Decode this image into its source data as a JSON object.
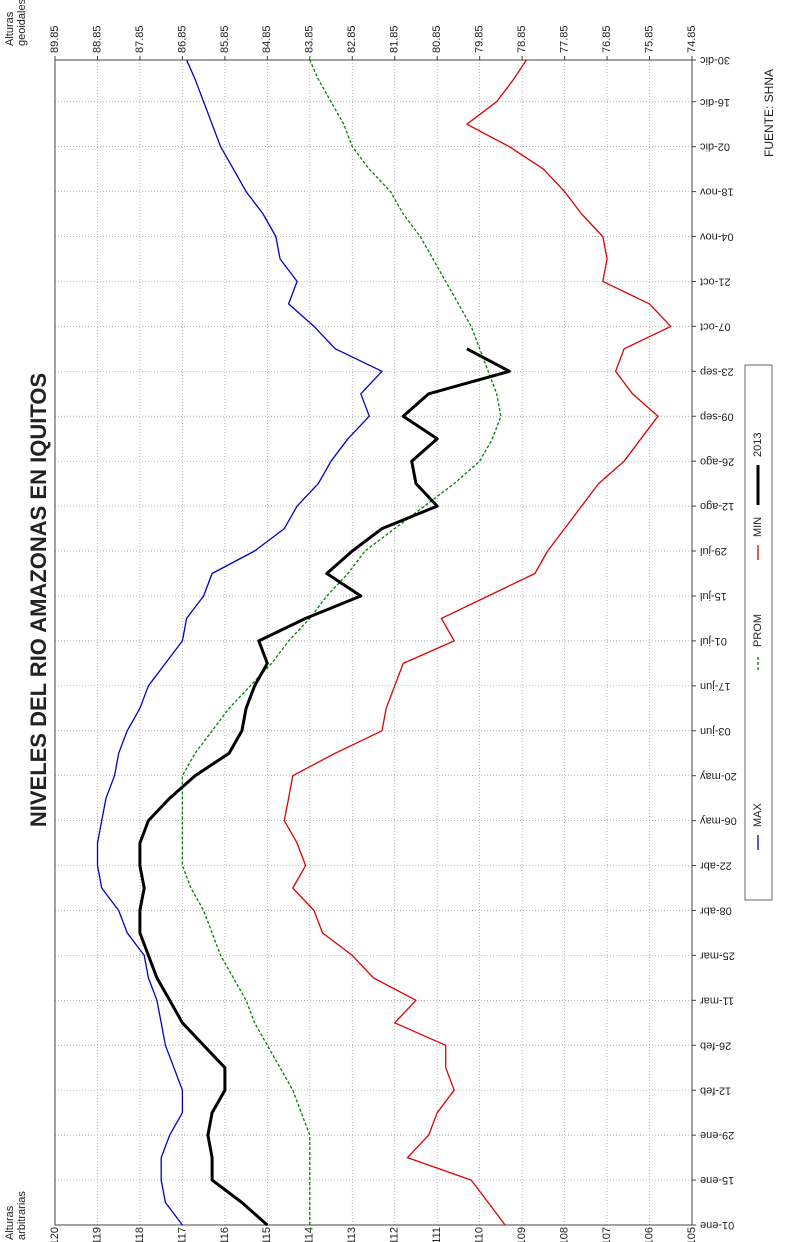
{
  "chart_data": {
    "type": "line",
    "title": "NIVELES DEL RIO AMAZONAS EN IQUITOS",
    "y_label": "Alturas arbitrarias",
    "y2_label": "Alturas geoidales",
    "note": "FUENTE: SHNA",
    "x": [
      0,
      7,
      14,
      21,
      28,
      35,
      42,
      49,
      56,
      63,
      70,
      77,
      84,
      91,
      98,
      105,
      112,
      119,
      126,
      133,
      140,
      147,
      154,
      161,
      168,
      175,
      182,
      189,
      196,
      203,
      210,
      217,
      224,
      231,
      238,
      245,
      252,
      259,
      266,
      273,
      280,
      287,
      294,
      301,
      308,
      315,
      322,
      329,
      336,
      343,
      350,
      357,
      363
    ],
    "xlim": [
      0,
      363
    ],
    "xticks": [
      {
        "value": 0,
        "label": "01-ene"
      },
      {
        "value": 14,
        "label": "15-ene"
      },
      {
        "value": 28,
        "label": "29-ene"
      },
      {
        "value": 42,
        "label": "12-feb"
      },
      {
        "value": 56,
        "label": "26-feb"
      },
      {
        "value": 70,
        "label": "11-mar"
      },
      {
        "value": 84,
        "label": "25-mar"
      },
      {
        "value": 98,
        "label": "08-abr"
      },
      {
        "value": 112,
        "label": "22-abr"
      },
      {
        "value": 126,
        "label": "06-may"
      },
      {
        "value": 140,
        "label": "20-may"
      },
      {
        "value": 154,
        "label": "03-jun"
      },
      {
        "value": 168,
        "label": "17-jun"
      },
      {
        "value": 182,
        "label": "01-jul"
      },
      {
        "value": 196,
        "label": "15-jul"
      },
      {
        "value": 210,
        "label": "29-jul"
      },
      {
        "value": 224,
        "label": "12-ago"
      },
      {
        "value": 238,
        "label": "26-ago"
      },
      {
        "value": 252,
        "label": "09-sep"
      },
      {
        "value": 266,
        "label": "23-sep"
      },
      {
        "value": 280,
        "label": "07-oct"
      },
      {
        "value": 294,
        "label": "21-oct"
      },
      {
        "value": 308,
        "label": "04-nov"
      },
      {
        "value": 322,
        "label": "18-nov"
      },
      {
        "value": 336,
        "label": "02-dic"
      },
      {
        "value": 350,
        "label": "16-dic"
      },
      {
        "value": 363,
        "label": "30-dic"
      }
    ],
    "ylim": [
      105,
      120
    ],
    "yticks": [
      105,
      106,
      107,
      108,
      109,
      110,
      111,
      112,
      113,
      114,
      115,
      116,
      117,
      118,
      119,
      120
    ],
    "y2lim": [
      74.85,
      89.85
    ],
    "y2ticks": [
      74.85,
      75.85,
      76.85,
      77.85,
      78.85,
      79.85,
      80.85,
      81.85,
      82.85,
      83.85,
      84.85,
      85.85,
      86.85,
      87.85,
      88.85,
      89.85
    ],
    "grid": true,
    "series": [
      {
        "name": "MAX",
        "color": "#0000cc",
        "linestyle": "solid",
        "values": [
          117.0,
          117.4,
          117.5,
          117.5,
          117.3,
          117.0,
          117.0,
          117.2,
          117.4,
          117.5,
          117.6,
          117.8,
          117.9,
          118.3,
          118.5,
          118.9,
          119.0,
          119.0,
          118.9,
          118.8,
          118.6,
          118.5,
          118.3,
          118.0,
          117.8,
          117.4,
          117.0,
          116.9,
          116.5,
          116.3,
          115.3,
          114.6,
          114.3,
          113.8,
          113.5,
          113.1,
          112.6,
          112.8,
          112.3,
          113.4,
          113.9,
          114.5,
          114.3,
          114.7,
          114.8,
          115.1,
          115.5,
          115.8,
          116.1,
          116.3,
          116.5,
          116.7,
          116.9
        ]
      },
      {
        "name": "PROM",
        "color": "#008000",
        "linestyle": "dashed",
        "values": [
          114.0,
          114.0,
          114.0,
          114.0,
          114.0,
          114.2,
          114.4,
          114.7,
          115.0,
          115.3,
          115.5,
          115.8,
          116.1,
          116.3,
          116.5,
          116.8,
          117.0,
          117.0,
          117.0,
          117.0,
          117.0,
          116.7,
          116.3,
          115.9,
          115.4,
          114.9,
          114.5,
          114.0,
          113.6,
          113.1,
          112.7,
          112.0,
          111.3,
          110.6,
          110.0,
          109.7,
          109.5,
          109.6,
          109.8,
          110.0,
          110.2,
          110.5,
          110.8,
          111.1,
          111.4,
          111.8,
          112.1,
          112.6,
          113.0,
          113.2,
          113.5,
          113.8,
          114.0
        ]
      },
      {
        "name": "MIN",
        "color": "#e00000",
        "linestyle": "solid",
        "values": [
          109.4,
          109.8,
          110.2,
          111.7,
          111.2,
          111.0,
          110.6,
          110.8,
          110.8,
          112.0,
          111.5,
          112.5,
          113.0,
          113.7,
          113.9,
          114.4,
          114.1,
          114.3,
          114.6,
          114.5,
          114.4,
          113.4,
          112.3,
          112.2,
          112.0,
          111.8,
          110.6,
          110.9,
          109.8,
          108.7,
          108.4,
          108.0,
          107.6,
          107.2,
          106.6,
          106.2,
          105.8,
          106.4,
          106.8,
          106.6,
          105.5,
          106.0,
          107.1,
          107.0,
          107.1,
          107.6,
          108.0,
          108.5,
          109.3,
          110.3,
          109.6,
          109.2,
          108.9
        ]
      },
      {
        "name": "2013",
        "color": "#000000",
        "linestyle": "solid",
        "values": [
          115.0,
          115.6,
          116.3,
          116.3,
          116.4,
          116.3,
          116.0,
          116.0,
          116.5,
          117.0,
          117.3,
          117.6,
          117.8,
          118.0,
          118.0,
          117.9,
          118.0,
          118.0,
          117.8,
          117.3,
          116.7,
          115.9,
          115.6,
          115.5,
          115.3,
          115.0,
          115.2,
          114.1,
          112.8,
          113.6,
          113.0,
          112.3,
          111.0,
          111.5,
          111.6,
          111.0,
          111.8,
          111.2,
          109.3,
          110.3,
          null,
          null,
          null,
          null,
          null,
          null,
          null,
          null,
          null,
          null,
          null,
          null,
          null
        ]
      }
    ]
  }
}
